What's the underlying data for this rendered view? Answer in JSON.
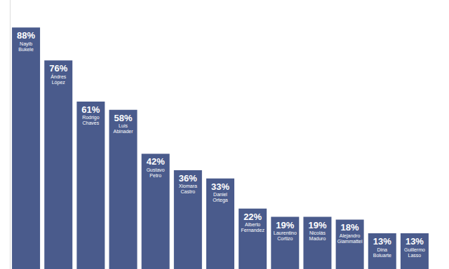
{
  "chart_data": {
    "type": "bar",
    "categories": [
      "Nayib Bukele",
      "Ándres López",
      "Rodrigo Chaves",
      "Luis Abinader",
      "Gustavo Petro",
      "Xiomara Castro",
      "Daniel Ortega",
      "Alberto Fernandez",
      "Laurentino Cortizo",
      "Nicolás Maduro",
      "Alejandro Giammattei",
      "Dina Boluarte",
      "Guillermo Lasso"
    ],
    "values": [
      88,
      76,
      61,
      58,
      42,
      36,
      33,
      22,
      19,
      19,
      18,
      13,
      13
    ],
    "value_labels": [
      "88%",
      "76%",
      "61%",
      "58%",
      "42%",
      "36%",
      "33%",
      "22%",
      "19%",
      "19%",
      "18%",
      "13%",
      "13%"
    ],
    "color": "#4a5b8c",
    "ylim": [
      0,
      98
    ],
    "grid": false,
    "data_labels": true,
    "tick_labels": false
  }
}
